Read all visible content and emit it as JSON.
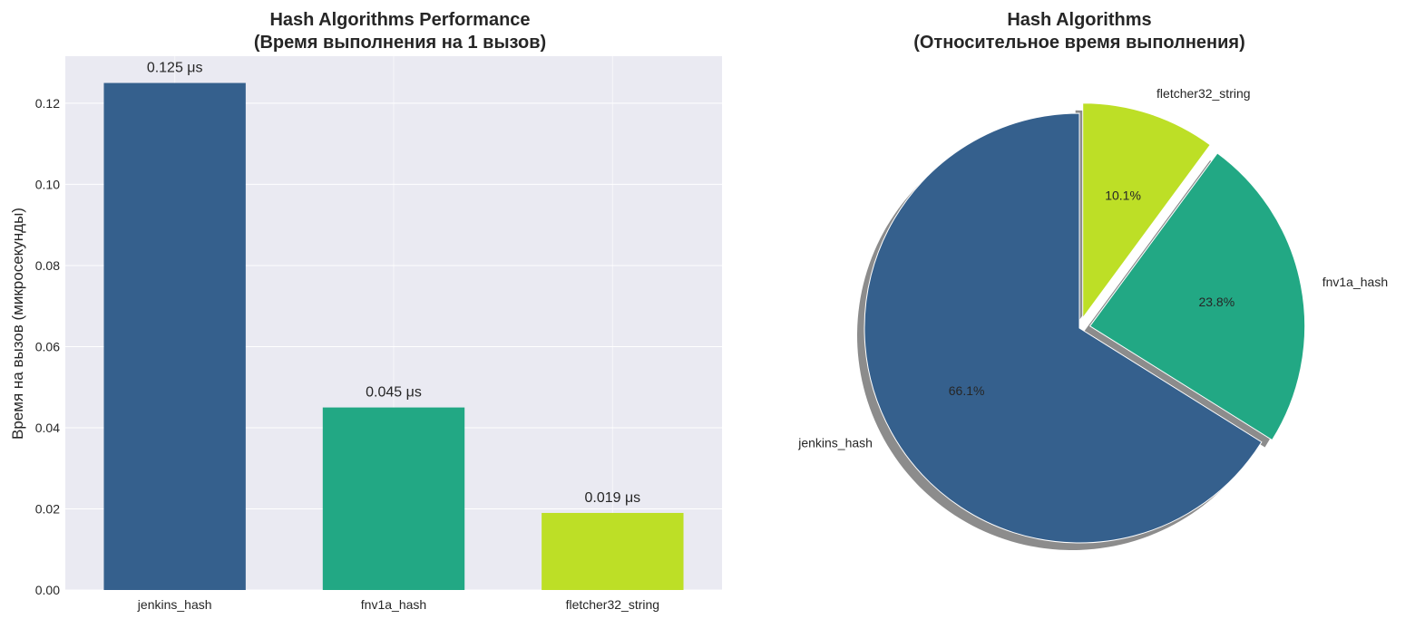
{
  "chart_data": [
    {
      "type": "bar",
      "title": "Hash Algorithms Performance",
      "subtitle": "(Время выполнения на 1 вызов)",
      "xlabel": "",
      "ylabel": "Время на вызов (микросекунды)",
      "categories": [
        "jenkins_hash",
        "fnv1a_hash",
        "fletcher32_string"
      ],
      "values": [
        0.125,
        0.045,
        0.019
      ],
      "data_labels": [
        "0.125 μs",
        "0.045 μs",
        "0.019 μs"
      ],
      "colors": [
        "#35608d",
        "#22a884",
        "#bddf26"
      ],
      "ylim": [
        0,
        0.1316
      ],
      "yticks": [
        0,
        0.02,
        0.04,
        0.06,
        0.08,
        0.1,
        0.12
      ],
      "ytick_labels": [
        "0.00",
        "0.02",
        "0.04",
        "0.06",
        "0.08",
        "0.10",
        "0.12"
      ],
      "grid": true
    },
    {
      "type": "pie",
      "title": "Hash Algorithms",
      "subtitle": "(Относительное время выполнения)",
      "labels": [
        "jenkins_hash",
        "fnv1a_hash",
        "fletcher32_string"
      ],
      "values": [
        66.1,
        23.8,
        10.1
      ],
      "pct_labels": [
        "66.1%",
        "23.8%",
        "10.1%"
      ],
      "explode": [
        0,
        0.05,
        0.05
      ],
      "colors": [
        "#35608d",
        "#22a884",
        "#bddf26"
      ],
      "start_angle": 90,
      "shadow": true
    }
  ]
}
